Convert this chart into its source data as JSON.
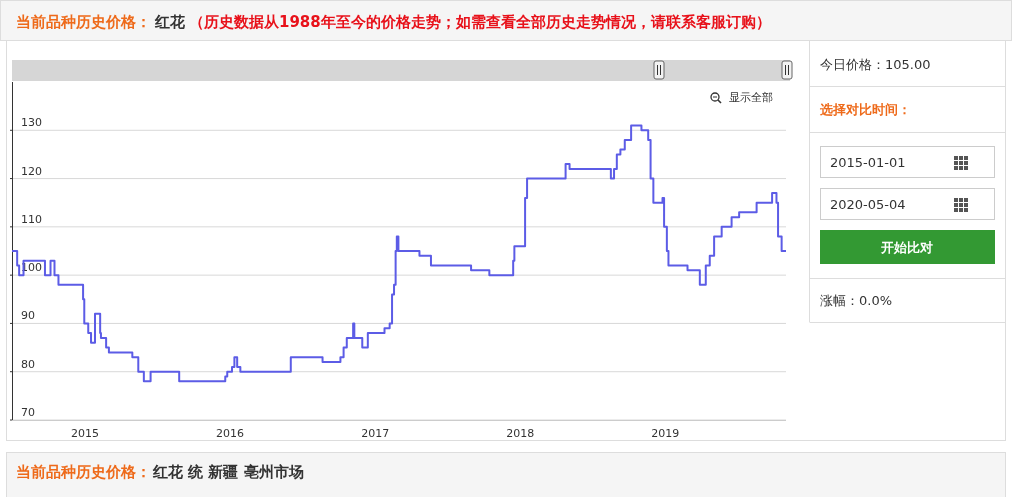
{
  "chart_data": {
    "type": "step",
    "title": "当前品种历史价格：",
    "subtitle": "红花",
    "annotations": [
      "（历史数据从1988年至今的价格走势；如需查看全部历史走势情况，请联系客服订购）",
      "显示全部",
      "今日价格：105.00",
      "选择对比时间：",
      "2015-01-01",
      "2020-05-04",
      "开始比对",
      "涨幅：0.0%",
      "当前品种历史价格：",
      "红花 统 新疆 亳州市场"
    ],
    "x": [
      "2014-07-01",
      "2014-07-14",
      "2014-07-19",
      "2014-07-30",
      "2014-09-22",
      "2014-10-06",
      "2014-10-16",
      "2014-10-26",
      "2014-12-27",
      "2014-12-30",
      "2015-01-09",
      "2015-01-16",
      "2015-01-26",
      "2015-02-08",
      "2015-02-10",
      "2015-02-23",
      "2015-03-02",
      "2015-04-30",
      "2015-05-15",
      "2015-05-29",
      "2015-06-15",
      "2015-08-26",
      "2015-12-20",
      "2015-12-25",
      "2016-01-06",
      "2016-01-12",
      "2016-01-19",
      "2016-01-27",
      "2016-06-02",
      "2016-08-21",
      "2016-10-05",
      "2016-10-13",
      "2016-10-21",
      "2016-11-06",
      "2016-11-09",
      "2016-11-29",
      "2016-12-13",
      "2017-01-24",
      "2017-02-06",
      "2017-02-12",
      "2017-02-17",
      "2017-02-21",
      "2017-02-24",
      "2017-02-28",
      "2017-04-22",
      "2017-05-21",
      "2017-08-30",
      "2017-10-15",
      "2017-12-14",
      "2017-12-17",
      "2018-01-13",
      "2018-01-18",
      "2018-04-25",
      "2018-05-05",
      "2018-08-17",
      "2018-08-25",
      "2018-09-01",
      "2018-09-10",
      "2018-09-21",
      "2018-10-07",
      "2018-11-02",
      "2018-11-19",
      "2018-11-25",
      "2018-12-02",
      "2018-12-25",
      "2018-12-29",
      "2019-01-05",
      "2019-01-09",
      "2019-02-26",
      "2019-03-29",
      "2019-04-13",
      "2019-04-23",
      "2019-05-04",
      "2019-05-23",
      "2019-06-17",
      "2019-07-06",
      "2019-08-19",
      "2019-09-27",
      "2019-10-08",
      "2019-10-12",
      "2019-10-21",
      "2019-11-01"
    ],
    "values": [
      105,
      102,
      100,
      103,
      100,
      103,
      100,
      98,
      95,
      90,
      88,
      86,
      92,
      88,
      87,
      85,
      84,
      83,
      80,
      78,
      80,
      78,
      79,
      80,
      81,
      83,
      81,
      80,
      83,
      82,
      83,
      85,
      87,
      90,
      87,
      85,
      88,
      89,
      90,
      96,
      98,
      105,
      108,
      105,
      104,
      102,
      101,
      100,
      103,
      106,
      116,
      120,
      123,
      122,
      120,
      122,
      125,
      126,
      128,
      131,
      130,
      128,
      120,
      115,
      116,
      110,
      105,
      102,
      101,
      98,
      102,
      104,
      108,
      110,
      112,
      113,
      115,
      117,
      115,
      108,
      105,
      105
    ],
    "color": "#5c5ce6",
    "xlim": [
      "2014-07-01",
      "2019-11-01"
    ],
    "xticks": [
      {
        "value": "2015-01-01",
        "label": "2015"
      },
      {
        "value": "2016-01-01",
        "label": "2016"
      },
      {
        "value": "2017-01-01",
        "label": "2017"
      },
      {
        "value": "2018-01-01",
        "label": "2018"
      },
      {
        "value": "2019-01-01",
        "label": "2019"
      }
    ],
    "ylim": [
      70,
      140
    ],
    "yticks": [
      70,
      80,
      90,
      100,
      110,
      120,
      130
    ],
    "grid": "y"
  }
}
